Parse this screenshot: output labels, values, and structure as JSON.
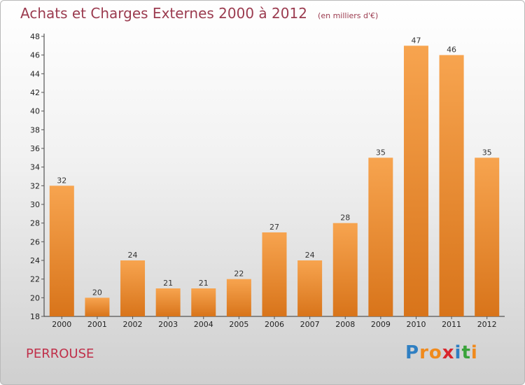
{
  "header": {
    "title": "Achats et Charges Externes 2000 à 2012",
    "unit": "(en milliers d'€)"
  },
  "footer": {
    "commune": "PERROUSE",
    "logo": {
      "letters": [
        "P",
        "r",
        "o",
        "x",
        "i",
        "t",
        "i"
      ],
      "colors": [
        "#2f7fc2",
        "#f08a1c",
        "#f08a1c",
        "#d9262c",
        "#2f7fc2",
        "#3aa33a",
        "#f08a1c"
      ]
    }
  },
  "colors": {
    "bar_light": "#f7a44f",
    "bar_dark": "#d8741a",
    "axis": "#333333",
    "grid_tick": "#555555"
  },
  "chart_data": {
    "type": "bar",
    "title": "Achats et Charges Externes 2000 à 2012",
    "subtitle": "(en milliers d'€)",
    "categories": [
      "2000",
      "2001",
      "2002",
      "2003",
      "2004",
      "2005",
      "2006",
      "2007",
      "2008",
      "2009",
      "2010",
      "2011",
      "2012"
    ],
    "values": [
      32,
      20,
      24,
      21,
      21,
      22,
      27,
      24,
      28,
      35,
      47,
      46,
      35
    ],
    "data_labels": [
      "32",
      "20",
      "24",
      "21",
      "21",
      "22",
      "27",
      "24",
      "28",
      "35",
      "47",
      "46",
      "35"
    ],
    "ylim": [
      18,
      48
    ],
    "yticks": [
      18,
      20,
      22,
      24,
      26,
      28,
      30,
      32,
      34,
      36,
      38,
      40,
      42,
      44,
      46,
      48
    ],
    "xlabel": "",
    "ylabel": "",
    "grid": false,
    "legend": "none"
  }
}
